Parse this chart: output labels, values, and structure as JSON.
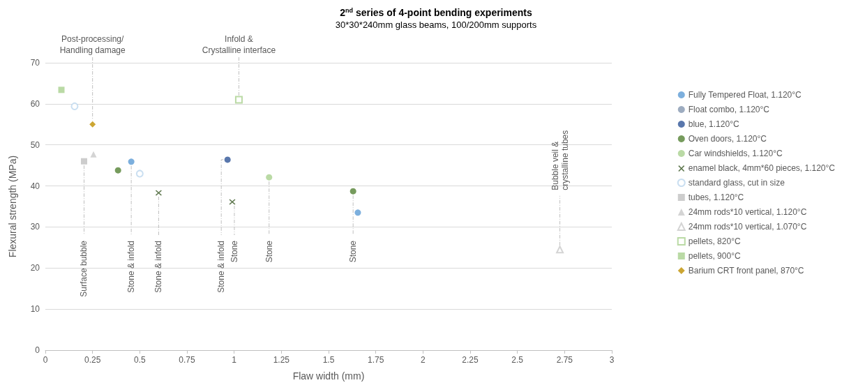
{
  "chart_data": {
    "type": "scatter",
    "title": "2$^{nd}$ series of 4-point bending experiments",
    "subtitle": "30*30*240mm glass beams, 100/200mm supports",
    "xlabel": "Flaw width (mm)",
    "ylabel": "Flexural strength (MPa)",
    "xlim": [
      0,
      3
    ],
    "xticks": [
      0,
      0.25,
      0.5,
      0.75,
      1,
      1.25,
      1.5,
      1.75,
      2,
      2.25,
      2.5,
      2.75,
      3
    ],
    "ylim": [
      0,
      70
    ],
    "yticks": [
      0,
      10,
      20,
      30,
      40,
      50,
      60,
      70
    ],
    "grid": "y",
    "legend": "right",
    "series": [
      {
        "name": "Fully Tempered Float, 1.120°C",
        "color": "#5b9bd5",
        "marker": "circle",
        "x": [
          0.455,
          1.655
        ],
        "values": [
          45.9,
          33.5
        ]
      },
      {
        "name": "Float combo, 1.120°C",
        "color": "#8497b0",
        "marker": "circle",
        "x": [
          null
        ],
        "values": [
          null
        ]
      },
      {
        "name": "blue, 1.120°C",
        "color": "#2f5597",
        "marker": "circle",
        "x": [
          0.965
        ],
        "values": [
          46.4
        ]
      },
      {
        "name": "Oven doors, 1.120°C",
        "color": "#548235",
        "marker": "circle",
        "x": [
          0.385,
          1.63
        ],
        "values": [
          43.8,
          38.7
        ]
      },
      {
        "name": "Car windshields, 1.120°C",
        "color": "#a9d18e",
        "marker": "circle",
        "x": [
          1.185
        ],
        "values": [
          42.1
        ]
      },
      {
        "name": "enamel black, 4mm*60 pieces, 1.120°C",
        "color": "#375623",
        "marker": "cross",
        "x": [
          0.6,
          0.99
        ],
        "values": [
          38.4,
          36.2
        ]
      },
      {
        "name": "standard glass, cut in size",
        "color": "#bdd7ee",
        "marker": "circle-open",
        "x": [
          0.155,
          0.5
        ],
        "values": [
          59.4,
          43.0
        ]
      },
      {
        "name": "tubes, 1.120°C",
        "color": "#c0c0c0",
        "marker": "square",
        "x": [
          0.205
        ],
        "values": [
          46.0
        ]
      },
      {
        "name": "24mm rods*10 vertical, 1.120°C",
        "color": "#c9c9c9",
        "marker": "triangle",
        "x": [
          0.255
        ],
        "values": [
          47.7
        ]
      },
      {
        "name": "24mm rods*10 vertical, 1.070°C",
        "color": "#c9c9c9",
        "marker": "triangle-open",
        "x": [
          2.725
        ],
        "values": [
          24.5
        ]
      },
      {
        "name": "pellets, 820°C",
        "color": "#a9d18e",
        "marker": "square-open",
        "x": [
          1.025
        ],
        "values": [
          61.0
        ]
      },
      {
        "name": "pellets, 900°C",
        "color": "#a9d18e",
        "marker": "square",
        "x": [
          0.085
        ],
        "values": [
          63.4
        ]
      },
      {
        "name": "Barium CRT front panel, 870°C",
        "color": "#bf9000",
        "marker": "diamond",
        "x": [
          0.25
        ],
        "values": [
          55.0
        ]
      }
    ],
    "annotations": [
      {
        "text": "Post-processing/\nHandling damage",
        "x": 0.25,
        "y": 55.0
      },
      {
        "text": "Infold &\nCrystalline interface",
        "x": 1.025,
        "y": 61.0
      },
      {
        "text": "Surface bubble",
        "x": 0.205,
        "y": 46.0
      },
      {
        "text": "Stone & infold",
        "x": 0.455,
        "y": 45.9
      },
      {
        "text": "Stone & infold",
        "x": 0.6,
        "y": 38.4
      },
      {
        "text": "Stone & infold",
        "x": 0.965,
        "y": 46.4
      },
      {
        "text": "Stone",
        "x": 0.99,
        "y": 36.2
      },
      {
        "text": "Stone",
        "x": 1.185,
        "y": 42.1
      },
      {
        "text": "Stone",
        "x": 1.63,
        "y": 38.7
      },
      {
        "text": "Bubble veil &\ncrystalline tubes",
        "x": 2.725,
        "y": 24.5
      }
    ]
  }
}
